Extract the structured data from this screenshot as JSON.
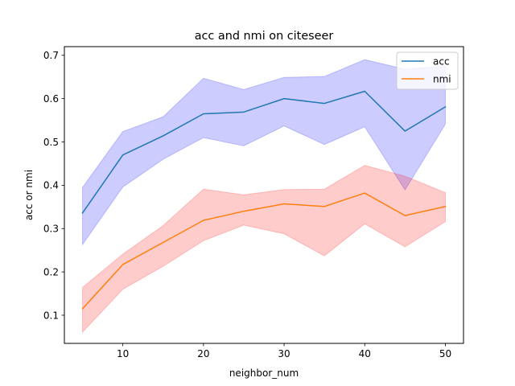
{
  "chart_data": {
    "type": "line",
    "title": "acc and nmi on citeseer",
    "xlabel": "neighbor_num",
    "ylabel": "acc or nmi",
    "xlim": [
      2.75,
      52.25
    ],
    "ylim": [
      0.035,
      0.72
    ],
    "xticks": [
      10,
      20,
      30,
      40,
      50
    ],
    "xtick_labels": [
      "10",
      "20",
      "30",
      "40",
      "50"
    ],
    "yticks": [
      0.1,
      0.2,
      0.3,
      0.4,
      0.5,
      0.6,
      0.7
    ],
    "ytick_labels": [
      "0.1",
      "0.2",
      "0.3",
      "0.4",
      "0.5",
      "0.6",
      "0.7"
    ],
    "grid": false,
    "legend_position": "top-right",
    "x": [
      5,
      10,
      15,
      20,
      25,
      30,
      35,
      40,
      45,
      50
    ],
    "series": [
      {
        "name": "acc",
        "color": "#1f77b4",
        "band_color": "#0000ff",
        "values": [
          0.336,
          0.47,
          0.514,
          0.565,
          0.569,
          0.6,
          0.589,
          0.617,
          0.525,
          0.581
        ],
        "lower": [
          0.263,
          0.396,
          0.46,
          0.51,
          0.491,
          0.537,
          0.494,
          0.535,
          0.389,
          0.541
        ],
        "upper": [
          0.395,
          0.524,
          0.558,
          0.647,
          0.621,
          0.649,
          0.651,
          0.69,
          0.668,
          0.675
        ]
      },
      {
        "name": "nmi",
        "color": "#ff7f0e",
        "band_color": "#ff0000",
        "values": [
          0.115,
          0.217,
          0.268,
          0.319,
          0.34,
          0.357,
          0.351,
          0.382,
          0.33,
          0.351
        ],
        "lower": [
          0.061,
          0.16,
          0.213,
          0.272,
          0.308,
          0.288,
          0.237,
          0.311,
          0.258,
          0.316
        ],
        "upper": [
          0.164,
          0.241,
          0.307,
          0.391,
          0.378,
          0.39,
          0.391,
          0.446,
          0.421,
          0.383
        ]
      }
    ]
  }
}
